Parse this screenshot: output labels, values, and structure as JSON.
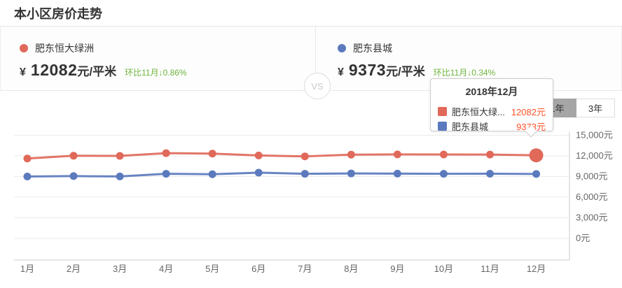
{
  "page": {
    "title": "本小区房价走势"
  },
  "comparison": {
    "left": {
      "name": "肥东恒大绿洲",
      "currency": "¥",
      "price": "12082",
      "unit": "元/平米",
      "change": "环比11月↓0.86%",
      "color": "#e0695a"
    },
    "vs_label": "VS",
    "right": {
      "name": "肥东县城",
      "currency": "¥",
      "price": "9373",
      "unit": "元/平米",
      "change": "环比11月↓0.34%",
      "color": "#5b7abd"
    }
  },
  "tabs": [
    {
      "label": "1年",
      "selected": true
    },
    {
      "label": "3年",
      "selected": false
    }
  ],
  "tooltip": {
    "title": "2018年12月",
    "rows": [
      {
        "name": "肥东恒大绿...",
        "value": "12082元",
        "color": "#e0695a"
      },
      {
        "name": "肥东县城",
        "value": "9373元",
        "color": "#5b7abd"
      }
    ]
  },
  "colors": {
    "red_series": "#e0695a",
    "blue_series": "#5b7abd",
    "change_green": "#6eb43c",
    "tooltip_value_orange": "#ff5226",
    "grid_line": "#ebebeb",
    "axis_line": "#cccccc",
    "axis_label": "#666666"
  },
  "chart_data": {
    "type": "line",
    "x": [
      "1月",
      "2月",
      "3月",
      "4月",
      "5月",
      "6月",
      "7月",
      "8月",
      "9月",
      "10月",
      "11月",
      "12月"
    ],
    "series": [
      {
        "name": "肥东恒大绿洲",
        "color": "#e0695a",
        "values": [
          11620,
          12020,
          12000,
          12400,
          12330,
          12060,
          11930,
          12180,
          12220,
          12200,
          12187,
          12082
        ]
      },
      {
        "name": "肥东县城",
        "color": "#5b7abd",
        "values": [
          9000,
          9060,
          9010,
          9400,
          9330,
          9560,
          9400,
          9450,
          9420,
          9390,
          9405,
          9373
        ]
      }
    ],
    "y_ticks": [
      {
        "v": 15000,
        "label": "15,000元"
      },
      {
        "v": 12000,
        "label": "12,000元"
      },
      {
        "v": 9000,
        "label": "9,000元"
      },
      {
        "v": 6000,
        "label": "6,000元"
      },
      {
        "v": 3000,
        "label": "3,000元"
      },
      {
        "v": 0,
        "label": "0元"
      }
    ],
    "ylim": [
      0,
      15000
    ],
    "legend_position": "top-cards",
    "grid": true,
    "highlight": {
      "series": 0,
      "index": 11
    }
  }
}
